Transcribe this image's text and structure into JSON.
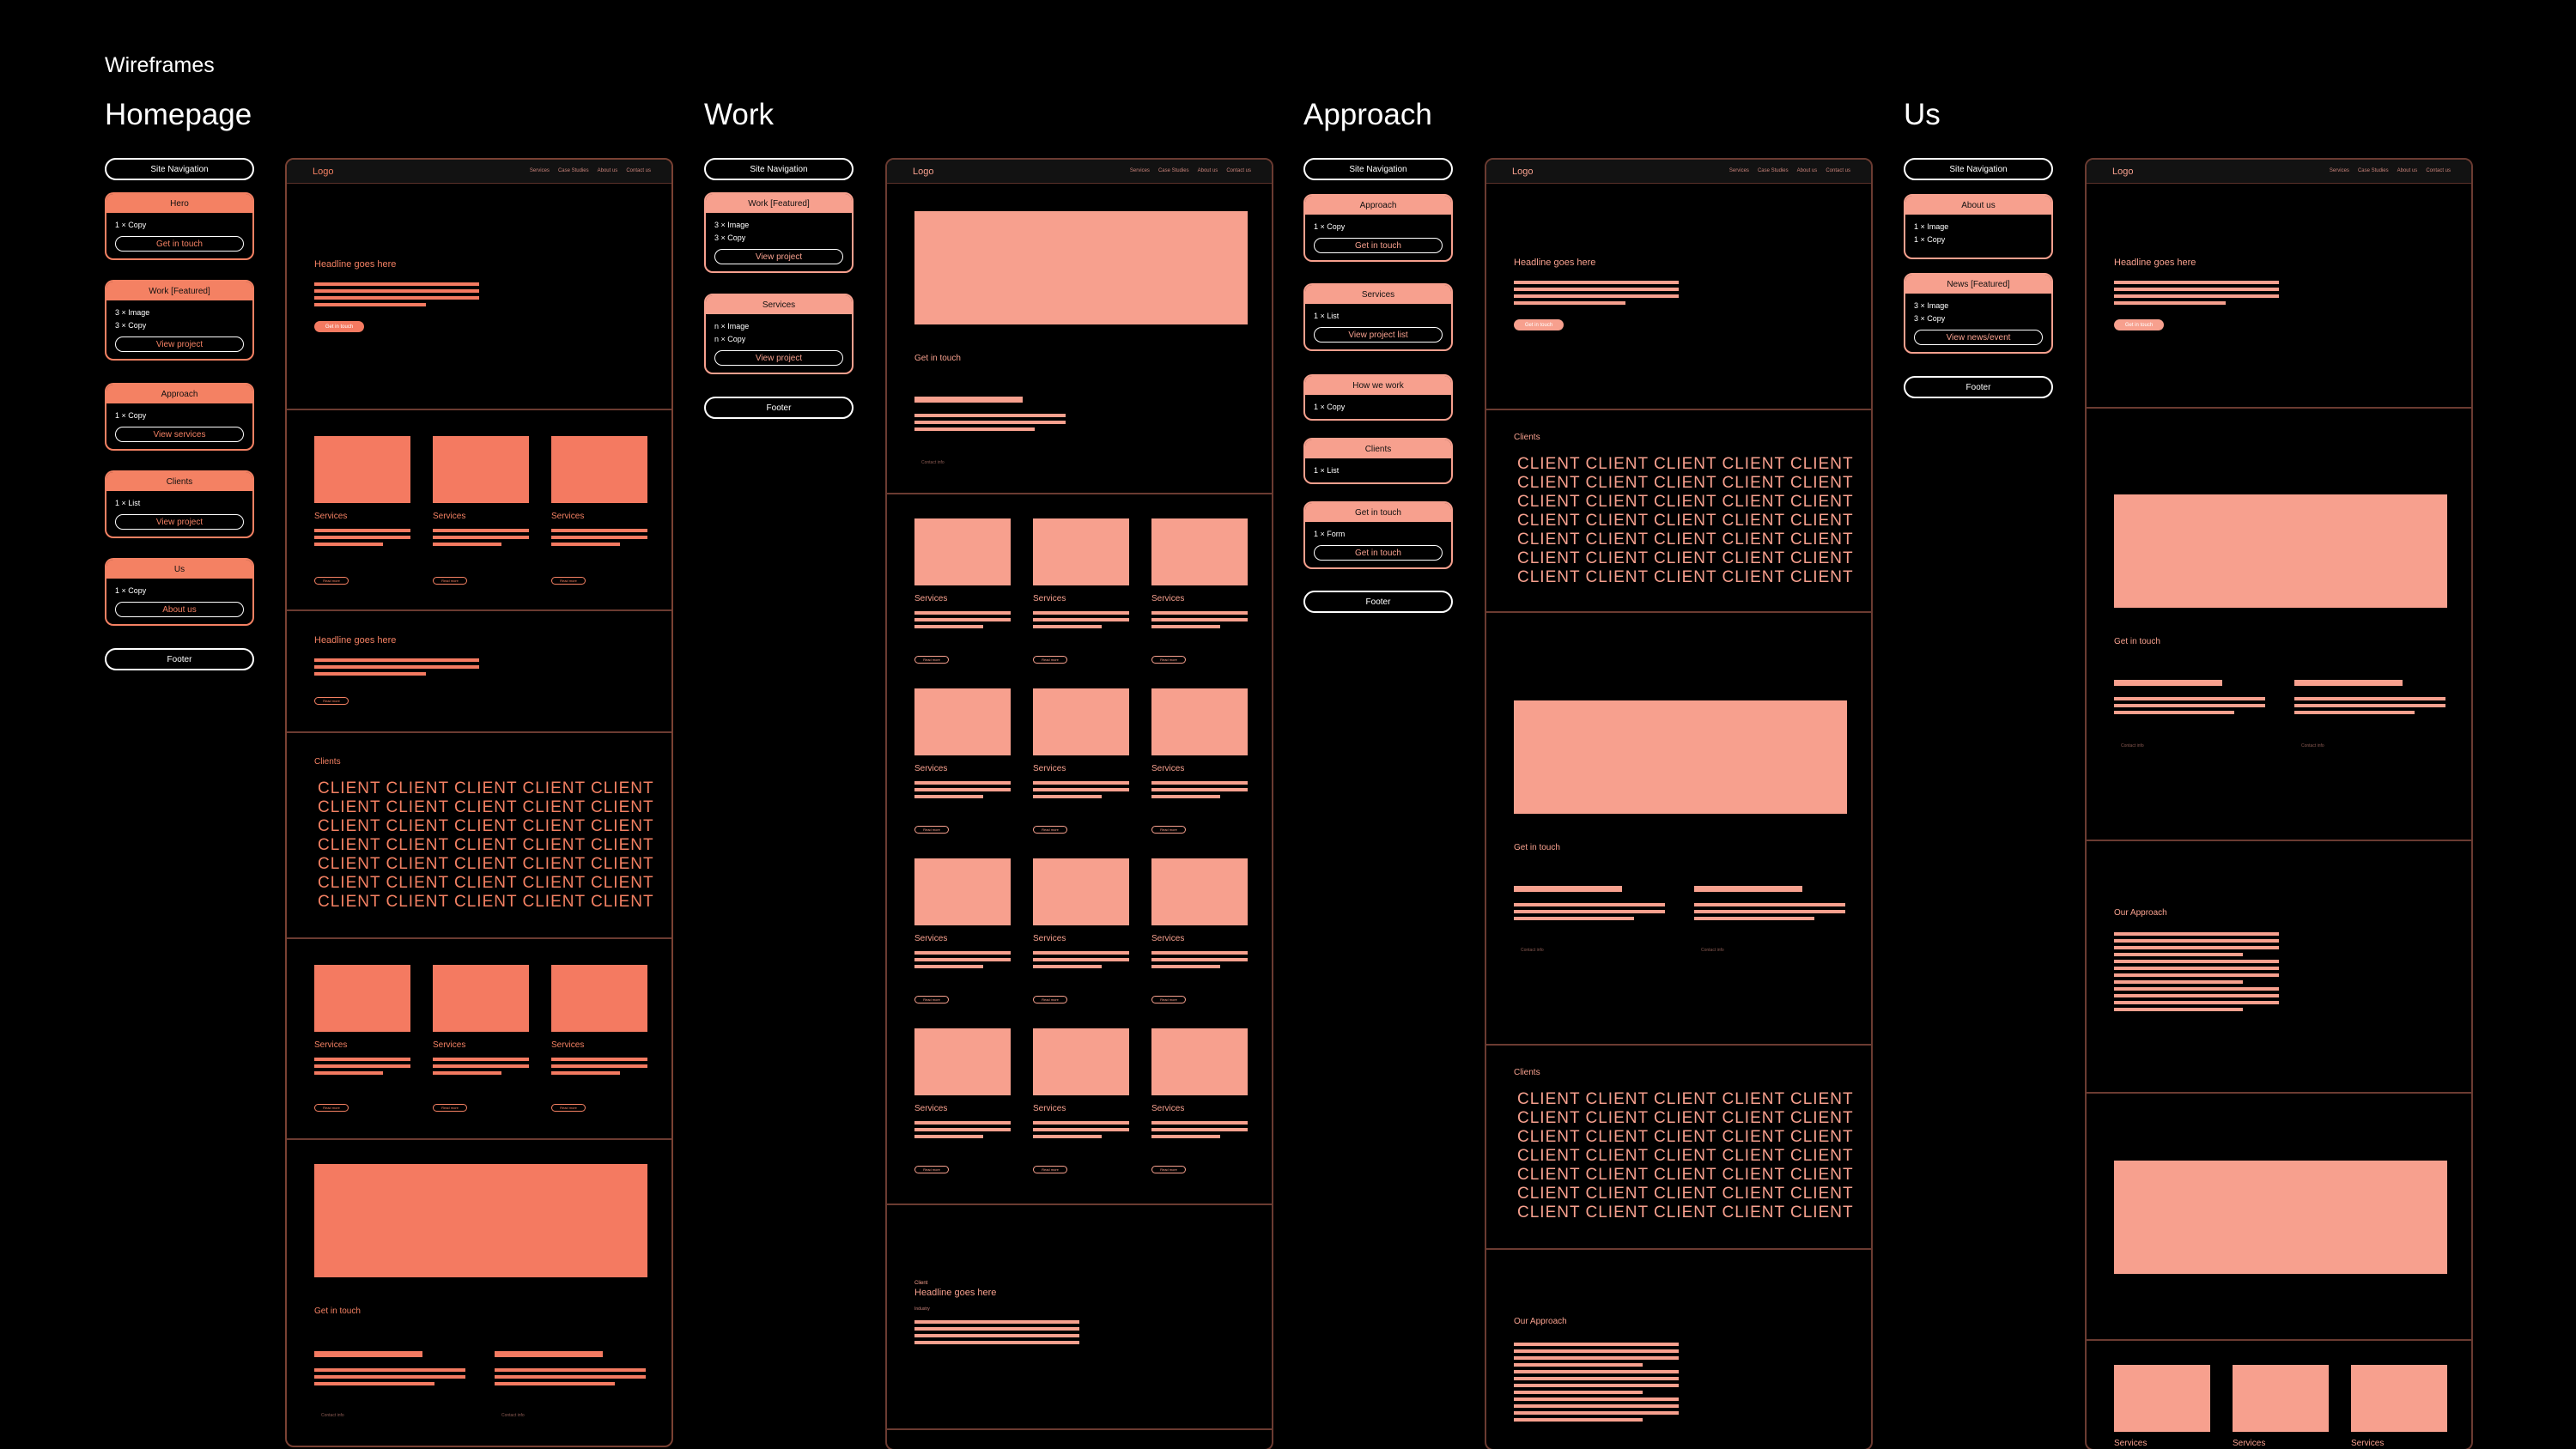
{
  "page_title": "Wireframes",
  "sections": [
    "Homepage",
    "Work",
    "Approach",
    "Us"
  ],
  "cards": {
    "site_nav": "Site Navigation",
    "footer": "Footer",
    "home": [
      {
        "head": "Hero",
        "copy": [
          "1 × Copy"
        ],
        "btn": "Get in touch"
      },
      {
        "head": "Work [Featured]",
        "copy": [
          "3 × Image",
          "3 × Copy"
        ],
        "btn": "View project"
      },
      {
        "head": "Approach",
        "copy": [
          "1 × Copy"
        ],
        "btn": "View services"
      },
      {
        "head": "Clients",
        "copy": [
          "1 × List"
        ],
        "btn": "View project"
      },
      {
        "head": "Us",
        "copy": [
          "1 × Copy"
        ],
        "btn": "About us"
      }
    ],
    "work": [
      {
        "head": "Work [Featured]",
        "copy": [
          "3 × Image",
          "3 × Copy"
        ],
        "btn": "View project"
      },
      {
        "head": "Services",
        "copy": [
          "n × Image",
          "n × Copy"
        ],
        "btn": "View project"
      }
    ],
    "approach": [
      {
        "head": "Approach",
        "copy": [
          "1 × Copy"
        ],
        "btn": "Get in touch"
      },
      {
        "head": "Services",
        "copy": [
          "1 × List"
        ],
        "btn": "View project list"
      },
      {
        "head": "How we work",
        "copy": [
          "1 × Copy"
        ],
        "btn": ""
      },
      {
        "head": "Clients",
        "copy": [
          "1 × List"
        ],
        "btn": ""
      },
      {
        "head": "Get in touch",
        "copy": [
          "1 × Form"
        ],
        "btn": "Get in touch"
      }
    ],
    "us": [
      {
        "head": "About us",
        "copy": [
          "1 × Image",
          "1 × Copy"
        ],
        "btn": ""
      },
      {
        "head": "News [Featured]",
        "copy": [
          "3 × Image",
          "3 × Copy"
        ],
        "btn": "View news/event"
      }
    ]
  },
  "wire": {
    "logo": "Logo",
    "nav_links": [
      "Services",
      "Case Studies",
      "About us",
      "Contact us"
    ],
    "headline": "Headline goes here",
    "cta": "Get in touch",
    "services": "Services",
    "read_more": "Read more",
    "clients_label": "Clients",
    "client_word": "CLIENT",
    "get_in_touch": "Get in touch",
    "our_approach": "Our Approach",
    "client_small": "Client",
    "industry": "Industry",
    "contact_small": "Contact info"
  },
  "colors": {
    "accent": "#f47a61",
    "accent_light": "#f7a08e",
    "frame_border": "#6b3b31",
    "background": "#000000"
  }
}
